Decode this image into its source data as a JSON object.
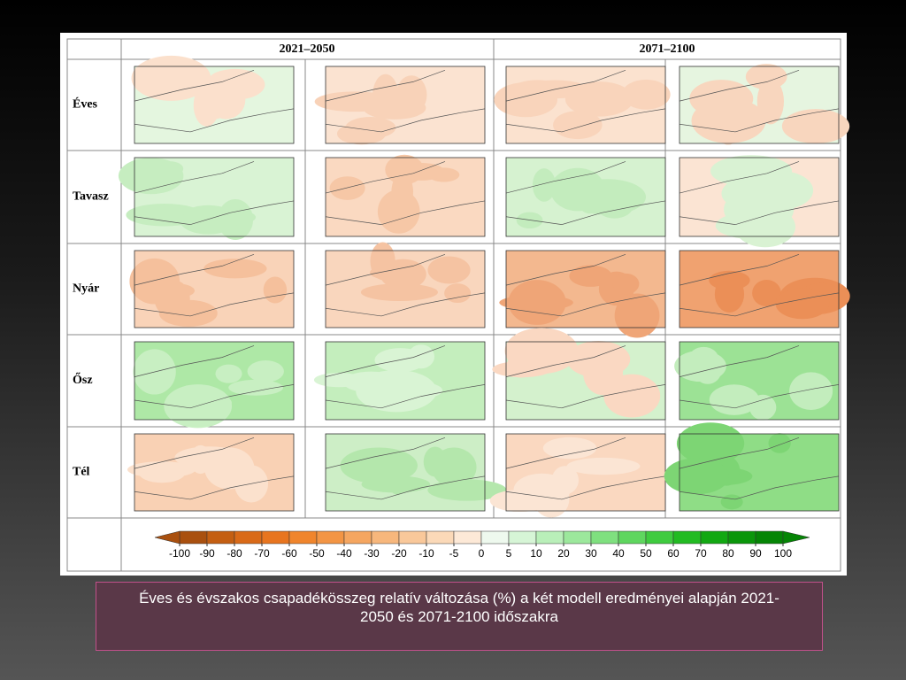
{
  "table": {
    "headers": [
      "2021–2050",
      "2071–2100"
    ],
    "rows": [
      "Éves",
      "Tavasz",
      "Nyár",
      "Ősz",
      "Tél"
    ]
  },
  "colorbar": {
    "ticks": [
      -100,
      -90,
      -80,
      -70,
      -60,
      -50,
      -40,
      -30,
      -20,
      -10,
      -5,
      0,
      5,
      10,
      20,
      30,
      40,
      50,
      60,
      70,
      80,
      90,
      100
    ],
    "colors": [
      "#a9500f",
      "#c45f12",
      "#d96a18",
      "#e8751f",
      "#f0852c",
      "#f39544",
      "#f5a660",
      "#f7b77c",
      "#f9c89a",
      "#fbd9b8",
      "#fde9d7",
      "#eef9ee",
      "#d6f5d6",
      "#b9efb9",
      "#9ce89c",
      "#7fe07f",
      "#5fd65f",
      "#3fcb3f",
      "#22bb22",
      "#12a812",
      "#0a960a",
      "#058505"
    ]
  },
  "caption": "Éves és évszakos csapadékösszeg relatív változása (%) a két modell eredményei alapján 2021-2050 és 2071-2100 időszakra"
}
